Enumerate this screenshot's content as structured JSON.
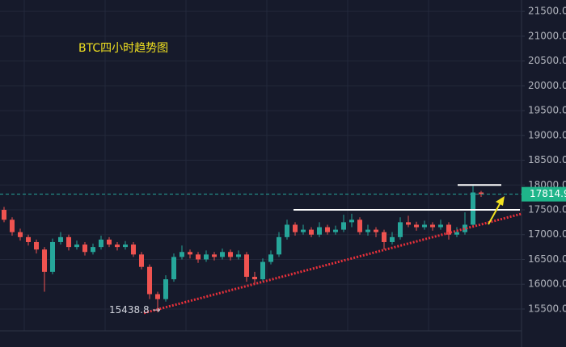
{
  "chart_data": {
    "type": "candlestick",
    "title": "BTC四小时趋势图",
    "open": [
      17500,
      17300,
      17050,
      16950,
      16850,
      16700,
      16250,
      16850,
      16950,
      16750,
      16800,
      16650,
      16750,
      16900,
      16800,
      16750,
      16800,
      16600,
      16350,
      15800,
      15700,
      16100,
      16550,
      16650,
      16600,
      16500,
      16600,
      16550,
      16650,
      16550,
      16600,
      16150,
      16100,
      16450,
      16600,
      16950,
      17200,
      17050,
      17100,
      17000,
      17150,
      17050,
      17100,
      17250,
      17300,
      17050,
      17100,
      17050,
      16850,
      16950,
      17250,
      17200,
      17150,
      17200,
      17150,
      17200,
      17000,
      17050,
      17200,
      17850
    ],
    "high": [
      17560,
      17350,
      17120,
      17000,
      16900,
      16750,
      16920,
      17050,
      17000,
      16880,
      16850,
      16820,
      16980,
      16950,
      16850,
      16870,
      16850,
      16650,
      16400,
      15850,
      16180,
      16620,
      16780,
      16700,
      16650,
      16680,
      16650,
      16720,
      16700,
      16680,
      16650,
      16250,
      16520,
      16680,
      17050,
      17300,
      17250,
      17200,
      17150,
      17250,
      17200,
      17180,
      17400,
      17420,
      17350,
      17200,
      17150,
      17100,
      17050,
      17350,
      17380,
      17260,
      17280,
      17250,
      17300,
      17250,
      17150,
      17450,
      17980,
      17880
    ],
    "low": [
      17250,
      16980,
      16880,
      16780,
      16620,
      15850,
      16200,
      16800,
      16680,
      16700,
      16580,
      16600,
      16700,
      16750,
      16680,
      16700,
      16550,
      16300,
      15700,
      15438.8,
      15650,
      16050,
      16500,
      16520,
      16430,
      16450,
      16480,
      16500,
      16480,
      16500,
      16050,
      16000,
      16050,
      16400,
      16550,
      16900,
      16980,
      17000,
      16950,
      16950,
      17000,
      17000,
      17050,
      17150,
      17000,
      16980,
      16950,
      16700,
      16800,
      16900,
      17150,
      17080,
      17100,
      17080,
      17100,
      16900,
      16950,
      17000,
      17150,
      17760
    ],
    "close": [
      17300,
      17050,
      16950,
      16850,
      16700,
      16250,
      16850,
      16950,
      16750,
      16800,
      16650,
      16750,
      16900,
      16800,
      16750,
      16800,
      16600,
      16350,
      15800,
      15700,
      16100,
      16550,
      16650,
      16600,
      16500,
      16600,
      16550,
      16650,
      16550,
      16600,
      16150,
      16100,
      16450,
      16600,
      16950,
      17200,
      17050,
      17100,
      17000,
      17150,
      17050,
      17100,
      17250,
      17300,
      17050,
      17100,
      17050,
      16850,
      16950,
      17250,
      17200,
      17150,
      17200,
      17150,
      17200,
      17000,
      17050,
      17200,
      17850,
      17815
    ],
    "up_color": "#26a69a",
    "down_color": "#ef5350",
    "ylim": [
      15060,
      21730
    ],
    "yticks": [
      {
        "value": 15500,
        "label": "15500.0"
      },
      {
        "value": 16000,
        "label": "16000.0"
      },
      {
        "value": 16500,
        "label": "16500.0"
      },
      {
        "value": 17000,
        "label": "17000.0"
      },
      {
        "value": 17500,
        "label": "17500.0"
      },
      {
        "value": 18000,
        "label": "18000.0"
      },
      {
        "value": 18500,
        "label": "18500.0"
      },
      {
        "value": 19000,
        "label": "19000.0"
      },
      {
        "value": 19500,
        "label": "19500.0"
      },
      {
        "value": 20000,
        "label": "20000.0"
      },
      {
        "value": 20500,
        "label": "20500.0"
      },
      {
        "value": 21000,
        "label": "21000.0"
      },
      {
        "value": 21500,
        "label": "21500.0"
      }
    ],
    "grid": true,
    "last_price": 17814.9,
    "low_label": {
      "value": 15438.8,
      "label": "15438.8 →"
    },
    "levels": [
      17500,
      18000
    ],
    "trendline": [
      15420,
      17420
    ]
  }
}
